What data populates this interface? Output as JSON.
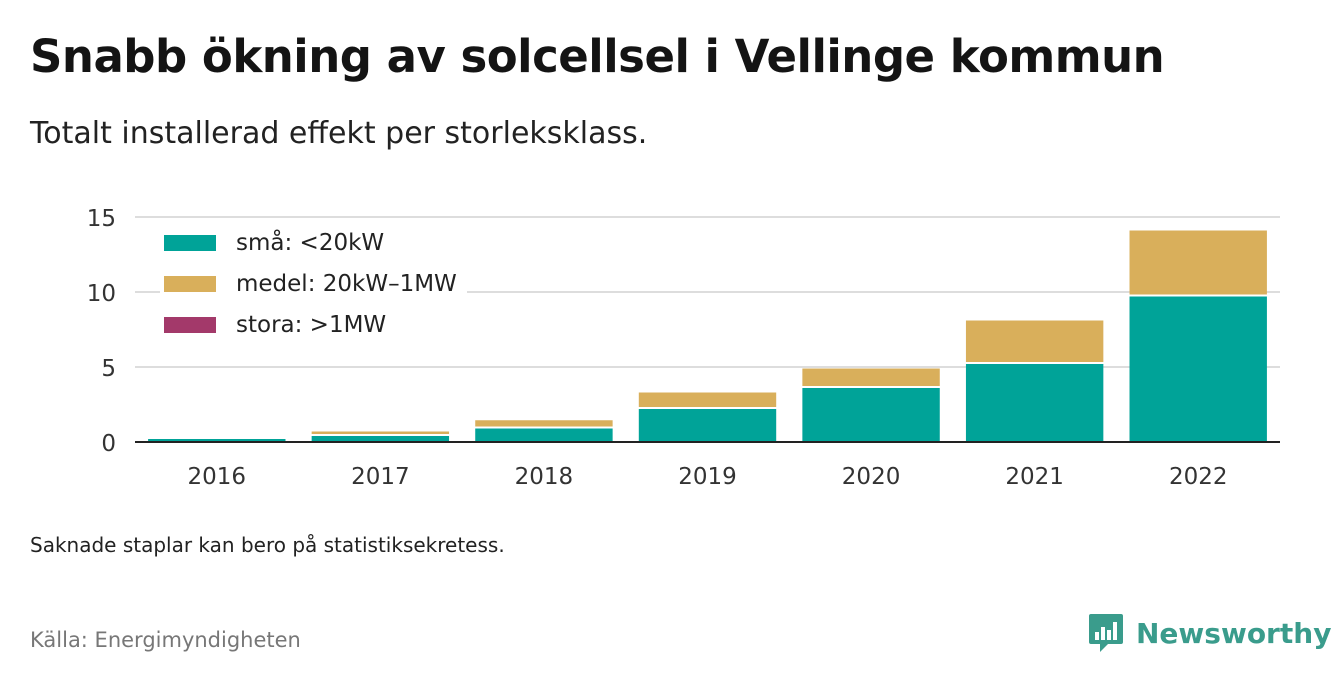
{
  "title": "Snabb ökning av solcellsel i Vellinge kommun",
  "subtitle": "Totalt installerad effekt per storleksklass.",
  "note": "Saknade staplar kan bero på statistiksekretess.",
  "source": "Källa: Energimyndigheten",
  "brand": {
    "name": "Newsworthy",
    "icon": "newsworthy-logo-icon",
    "color": "#3a9c8c"
  },
  "legend": {
    "items": [
      {
        "label": "små: <20kW",
        "color": "#00a398"
      },
      {
        "label": "medel: 20kW–1MW",
        "color": "#d9af5b"
      },
      {
        "label": "stora: >1MW",
        "color": "#a3396a"
      }
    ]
  },
  "chart_data": {
    "type": "bar",
    "stacked": true,
    "categories": [
      "2016",
      "2017",
      "2018",
      "2019",
      "2020",
      "2021",
      "2022"
    ],
    "series": [
      {
        "name": "små: <20kW",
        "color": "#00a398",
        "values": [
          0.2,
          0.4,
          0.9,
          2.2,
          3.6,
          5.2,
          9.7
        ]
      },
      {
        "name": "medel: 20kW–1MW",
        "color": "#d9af5b",
        "values": [
          0.05,
          0.3,
          0.55,
          1.1,
          1.3,
          2.9,
          4.4
        ]
      },
      {
        "name": "stora: >1MW",
        "color": "#a3396a",
        "values": [
          0,
          0,
          0,
          0,
          0,
          0,
          0
        ]
      }
    ],
    "ylim": [
      0,
      15
    ],
    "yticks": [
      "0",
      "5",
      "10",
      "15"
    ],
    "grid": true,
    "legend_position": "top-left"
  }
}
